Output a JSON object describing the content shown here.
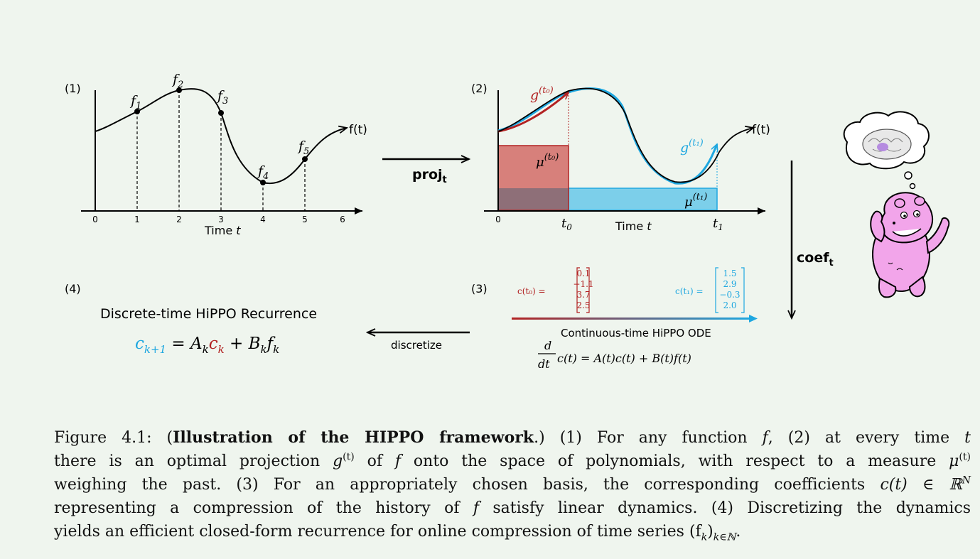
{
  "panel1": {
    "label": "(1)",
    "points": [
      {
        "name": "f",
        "sub": "1"
      },
      {
        "name": "f",
        "sub": "2"
      },
      {
        "name": "f",
        "sub": "3"
      },
      {
        "name": "f",
        "sub": "4"
      },
      {
        "name": "f",
        "sub": "5"
      }
    ],
    "curve_label": "f(t)",
    "ticks": [
      "0",
      "1",
      "2",
      "3",
      "4",
      "5",
      "6"
    ],
    "xlabel": "Time",
    "xlabel_var": "t"
  },
  "arrow_proj": {
    "label": "proj",
    "sub": "t"
  },
  "panel2": {
    "label": "(2)",
    "g0": "g",
    "g0_sup": "(t₀)",
    "g1": "g",
    "g1_sup": "(t₁)",
    "mu0": "μ",
    "mu0_sup": "(t₀)",
    "mu1": "μ",
    "mu1_sup": "(t₁)",
    "curve_label": "f(t)",
    "tick0": "0",
    "t0": "t",
    "t0_sub": "0",
    "t1": "t",
    "t1_sub": "1",
    "xlabel": "Time",
    "xlabel_var": "t"
  },
  "arrow_coef": {
    "label": "coef",
    "sub": "t"
  },
  "panel3": {
    "label": "(3)",
    "c0_label": "c(t₀) =",
    "c0_values": [
      "0.1",
      "−1.1",
      "3.7",
      "2.5"
    ],
    "c1_label": "c(t₁) =",
    "c1_values": [
      "1.5",
      "2.9",
      "−0.3",
      "2.0"
    ],
    "title": "Continuous-time HiPPO ODE",
    "eq_d": "d",
    "eq_dt": "dt",
    "eq_rhs": "c(t) = A(t)c(t) + B(t)f(t)"
  },
  "arrow_discretize": {
    "label": "discretize"
  },
  "panel4": {
    "label": "(4)",
    "title": "Discrete-time HiPPO Recurrence",
    "lhs_c": "c",
    "lhs_sub": "k+1",
    "eq_mid": " = A",
    "a_sub": "k",
    "mid_c": "c",
    "mid_sub": "k",
    "plus": " + B",
    "b_sub": "k",
    "f": "f",
    "f_sub": "k"
  },
  "colors": {
    "red": "#b22222",
    "blue": "#1ea7e0",
    "red_fill": "#d7807b",
    "blue_fill": "#7ccfea",
    "overlap_fill": "#8e6f78",
    "hippo_pink": "#f2a5ea",
    "background": "#eff5ee"
  },
  "mascot": {
    "icon": "hippo-thinking-icon"
  },
  "caption": {
    "figure_num": "Figure 4.1:",
    "bold_title": "Illustration of the HIPPO framework",
    "line1_rest": ".) (1) For any function",
    "f": "f",
    "line1_b": ", (2) at every time",
    "t": "t",
    "line2_a": "there is an optimal projection",
    "g": "g",
    "sup_t": "(t)",
    "line2_b": "of",
    "line2_c": "onto the space of polynomials, with respect to a measure",
    "mu": "μ",
    "line3_a": "weighing the past. (3) For an appropriately chosen basis, the corresponding coefficients",
    "ct": "c(t) ∈ ℝ",
    "N": "N",
    "line4_a": "representing a compression of the history of",
    "line4_b": "satisfy linear dynamics. (4) Discretizing the dynamics",
    "line5_a": "yields an efficient closed-form recurrence for online compression of time series",
    "fk": "(f",
    "fk_sub_k": "k",
    "fk_close": ")",
    "fk_sub_range": "k∈ℕ",
    "period": "."
  }
}
